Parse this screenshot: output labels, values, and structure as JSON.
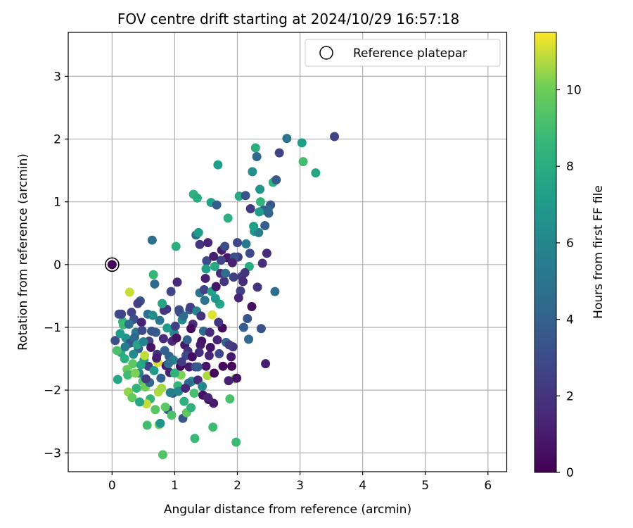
{
  "chart_data": {
    "type": "scatter",
    "title": "FOV centre drift starting at 2024/10/29 16:57:18",
    "xlabel": "Angular distance from reference (arcmin)",
    "ylabel": "Rotation from reference (arcmin)",
    "xlim": [
      -0.7,
      6.3
    ],
    "ylim": [
      -3.3,
      3.7
    ],
    "xticks": [
      0,
      1,
      2,
      3,
      4,
      5,
      6
    ],
    "yticks": [
      -3,
      -2,
      -1,
      0,
      1,
      2,
      3
    ],
    "grid": true,
    "colormap": "viridis",
    "colorbar": {
      "label": "Hours from first FF file",
      "min": 0,
      "max": 11.5,
      "ticks": [
        0,
        2,
        4,
        6,
        8,
        10
      ]
    },
    "legend": {
      "position": "top-right",
      "entries": [
        {
          "label": "Reference platepar",
          "marker": "open-circle"
        }
      ]
    },
    "reference_point": {
      "x": 0,
      "y": 0
    },
    "points": [
      [
        0.0,
        0.0,
        0.1
      ],
      [
        0.05,
        -1.21,
        3.2
      ],
      [
        0.11,
        -0.79,
        3.0
      ],
      [
        0.09,
        -1.83,
        7.6
      ],
      [
        0.17,
        -0.91,
        8.4
      ],
      [
        0.22,
        -1.17,
        6.6
      ],
      [
        0.28,
        -0.44,
        11.0
      ],
      [
        0.31,
        -0.76,
        2.6
      ],
      [
        0.33,
        -1.58,
        9.6
      ],
      [
        0.26,
        -2.03,
        10.4
      ],
      [
        0.38,
        -1.08,
        5.2
      ],
      [
        0.42,
        -1.34,
        3.9
      ],
      [
        0.45,
        -0.58,
        3.3
      ],
      [
        0.49,
        -1.86,
        9.3
      ],
      [
        0.53,
        -1.95,
        10.0
      ],
      [
        0.56,
        -2.56,
        9.0
      ],
      [
        0.59,
        -1.22,
        2.4
      ],
      [
        0.61,
        -2.14,
        8.5
      ],
      [
        0.64,
        0.39,
        4.8
      ],
      [
        0.66,
        -0.16,
        8.6
      ],
      [
        0.68,
        -0.31,
        4.4
      ],
      [
        0.72,
        -1.43,
        1.9
      ],
      [
        0.75,
        -2.55,
        10.1
      ],
      [
        0.77,
        -2.53,
        6.7
      ],
      [
        0.81,
        -3.03,
        9.4
      ],
      [
        0.83,
        -0.73,
        2.2
      ],
      [
        0.86,
        -1.61,
        1.0
      ],
      [
        0.89,
        -2.31,
        3.1
      ],
      [
        0.91,
        -1.46,
        4.1
      ],
      [
        0.94,
        -0.43,
        2.8
      ],
      [
        0.97,
        -2.05,
        3.6
      ],
      [
        0.99,
        -1.09,
        6.1
      ],
      [
        1.02,
        0.29,
        8.1
      ],
      [
        1.04,
        -0.28,
        1.5
      ],
      [
        1.08,
        -0.76,
        2.7
      ],
      [
        1.1,
        -1.76,
        10.2
      ],
      [
        1.13,
        -2.45,
        3.5
      ],
      [
        1.16,
        -1.28,
        0.8
      ],
      [
        1.19,
        -2.36,
        9.7
      ],
      [
        1.21,
        -1.38,
        1.8
      ],
      [
        1.24,
        -0.72,
        3.7
      ],
      [
        1.27,
        -1.86,
        6.3
      ],
      [
        1.3,
        1.12,
        8.3
      ],
      [
        1.32,
        -2.77,
        8.7
      ],
      [
        1.34,
        0.47,
        4.6
      ],
      [
        1.36,
        1.06,
        7.9
      ],
      [
        1.38,
        0.51,
        7.1
      ],
      [
        1.4,
        -0.45,
        5.1
      ],
      [
        1.43,
        -1.22,
        0.6
      ],
      [
        1.46,
        -1.06,
        4.5
      ],
      [
        1.49,
        -0.22,
        1.2
      ],
      [
        1.51,
        0.06,
        2.9
      ],
      [
        1.55,
        -1.45,
        1.4
      ],
      [
        1.58,
        0.99,
        7.4
      ],
      [
        1.6,
        -0.8,
        11.2
      ],
      [
        1.61,
        -2.59,
        8.9
      ],
      [
        1.64,
        -0.03,
        7.8
      ],
      [
        1.67,
        0.95,
        3.9
      ],
      [
        1.69,
        1.59,
        7.2
      ],
      [
        1.72,
        -0.63,
        7.5
      ],
      [
        1.76,
        -1.01,
        0.4
      ],
      [
        1.79,
        -0.27,
        1.9
      ],
      [
        1.82,
        -1.24,
        4.2
      ],
      [
        1.85,
        0.74,
        8.2
      ],
      [
        1.88,
        -2.14,
        9.2
      ],
      [
        1.9,
        -1.47,
        0.9
      ],
      [
        1.93,
        -1.31,
        2.0
      ],
      [
        1.96,
        -1.82,
        10.3
      ],
      [
        1.98,
        -2.83,
        8.8
      ],
      [
        2.01,
        0.12,
        2.3
      ],
      [
        2.03,
        1.09,
        7.7
      ],
      [
        2.07,
        -0.19,
        2.2
      ],
      [
        2.1,
        -1.0,
        3.8
      ],
      [
        2.13,
        1.1,
        3.3
      ],
      [
        2.16,
        -0.86,
        3.4
      ],
      [
        2.19,
        -0.03,
        8.0
      ],
      [
        2.21,
        0.89,
        2.1
      ],
      [
        2.24,
        1.48,
        6.4
      ],
      [
        2.27,
        0.53,
        6.8
      ],
      [
        2.29,
        1.86,
        8.1
      ],
      [
        2.31,
        1.72,
        4.3
      ],
      [
        2.34,
        0.51,
        5.4
      ],
      [
        2.36,
        1.2,
        6.7
      ],
      [
        2.38,
        -1.02,
        3.3
      ],
      [
        2.4,
        0.02,
        1.7
      ],
      [
        2.42,
        0.87,
        3.7
      ],
      [
        2.45,
        -1.58,
        1.1
      ],
      [
        2.47,
        0.18,
        1.6
      ],
      [
        2.5,
        0.82,
        4.1
      ],
      [
        2.53,
        0.95,
        3.4
      ],
      [
        2.57,
        1.31,
        8.3
      ],
      [
        2.6,
        -0.43,
        4.7
      ],
      [
        2.62,
        1.35,
        3.6
      ],
      [
        2.67,
        1.78,
        2.6
      ],
      [
        2.79,
        2.01,
        4.9
      ],
      [
        3.03,
        1.94,
        7.3
      ],
      [
        3.05,
        1.64,
        9.0
      ],
      [
        3.25,
        1.46,
        7.6
      ],
      [
        3.55,
        2.04,
        2.6
      ],
      [
        0.14,
        -1.4,
        7.9
      ],
      [
        0.18,
        -0.96,
        8.8
      ],
      [
        0.24,
        -1.67,
        9.9
      ],
      [
        0.29,
        -1.25,
        3.5
      ],
      [
        0.35,
        -0.87,
        3.1
      ],
      [
        0.39,
        -1.97,
        8.4
      ],
      [
        0.43,
        -1.73,
        5.8
      ],
      [
        0.47,
        -0.92,
        1.3
      ],
      [
        0.51,
        -1.52,
        6.9
      ],
      [
        0.55,
        -2.22,
        10.9
      ],
      [
        0.58,
        -1.62,
        2.5
      ],
      [
        0.62,
        -1.32,
        0.7
      ],
      [
        0.67,
        -1.69,
        7.0
      ],
      [
        0.7,
        -1.08,
        3.8
      ],
      [
        0.74,
        -2.03,
        10.7
      ],
      [
        0.78,
        -1.81,
        4.0
      ],
      [
        0.82,
        -1.18,
        1.6
      ],
      [
        0.85,
        -2.27,
        9.6
      ],
      [
        0.88,
        -1.01,
        7.1
      ],
      [
        0.92,
        -1.72,
        1.2
      ],
      [
        0.95,
        -2.4,
        9.2
      ],
      [
        0.98,
        -1.52,
        5.5
      ],
      [
        1.01,
        -0.98,
        2.5
      ],
      [
        1.05,
        -1.93,
        8.6
      ],
      [
        1.09,
        -1.62,
        0.3
      ],
      [
        1.12,
        -0.88,
        6.2
      ],
      [
        1.15,
        -2.18,
        8.2
      ],
      [
        1.18,
        -1.45,
        2.8
      ],
      [
        1.22,
        -1.89,
        4.4
      ],
      [
        1.25,
        -0.68,
        2.4
      ],
      [
        1.28,
        -1.47,
        0.5
      ],
      [
        1.31,
        -2.05,
        9.1
      ],
      [
        1.35,
        -0.74,
        5.8
      ],
      [
        1.37,
        -1.84,
        1.5
      ],
      [
        1.41,
        -1.28,
        1.0
      ],
      [
        1.44,
        -1.94,
        6.0
      ],
      [
        1.47,
        -0.4,
        2.6
      ],
      [
        1.5,
        -1.62,
        0.8
      ],
      [
        1.54,
        -2.15,
        0.4
      ],
      [
        1.57,
        -1.32,
        0.7
      ],
      [
        1.62,
        -2.21,
        1.0
      ],
      [
        1.65,
        -0.54,
        6.8
      ],
      [
        1.68,
        -1.2,
        1.3
      ],
      [
        1.73,
        -0.14,
        1.6
      ],
      [
        1.77,
        -1.62,
        0.4
      ],
      [
        1.81,
        -0.14,
        4.5
      ],
      [
        1.84,
        0.11,
        0.9
      ],
      [
        1.87,
        -1.28,
        2.3
      ],
      [
        1.91,
        -1.62,
        0.3
      ],
      [
        1.95,
        0.12,
        3.3
      ],
      [
        1.99,
        -1.81,
        0.6
      ],
      [
        2.05,
        -0.42,
        2.4
      ],
      [
        2.09,
        -0.27,
        1.6
      ],
      [
        2.12,
        -0.13,
        1.9
      ],
      [
        2.18,
        -1.19,
        4.4
      ],
      [
        2.23,
        -0.67,
        0.6
      ],
      [
        2.26,
        0.61,
        7.3
      ],
      [
        2.32,
        -0.36,
        1.9
      ],
      [
        2.37,
        1.0,
        8.4
      ],
      [
        2.44,
        0.62,
        3.8
      ],
      [
        0.08,
        -1.37,
        9.2
      ],
      [
        0.13,
        -1.1,
        7.1
      ],
      [
        0.2,
        -1.5,
        8.1
      ],
      [
        0.27,
        -0.95,
        4.7
      ],
      [
        0.32,
        -2.12,
        9.8
      ],
      [
        0.36,
        -1.16,
        4.3
      ],
      [
        0.4,
        -1.28,
        7.5
      ],
      [
        0.44,
        -2.19,
        7.6
      ],
      [
        0.48,
        -1.05,
        3.0
      ],
      [
        0.52,
        -1.45,
        10.9
      ],
      [
        0.57,
        -0.79,
        4.8
      ],
      [
        0.6,
        -1.88,
        4.3
      ],
      [
        0.63,
        -1.06,
        3.5
      ],
      [
        0.69,
        -2.31,
        9.5
      ],
      [
        0.73,
        -1.56,
        11.1
      ],
      [
        0.76,
        -0.89,
        5.1
      ],
      [
        0.79,
        -1.97,
        10.6
      ],
      [
        0.84,
        -1.37,
        3.9
      ],
      [
        0.87,
        -0.71,
        2.1
      ],
      [
        0.9,
        -1.58,
        4.9
      ],
      [
        0.93,
        -2.04,
        5.6
      ],
      [
        0.96,
        -1.22,
        1.4
      ],
      [
        1.0,
        -1.73,
        8.4
      ],
      [
        1.03,
        -1.17,
        0.6
      ],
      [
        1.06,
        -2.02,
        6.0
      ],
      [
        1.11,
        -1.55,
        2.2
      ],
      [
        1.14,
        -0.82,
        4.6
      ],
      [
        1.17,
        -1.97,
        1.5
      ],
      [
        1.2,
        -1.2,
        4.0
      ],
      [
        1.23,
        -1.63,
        0.9
      ],
      [
        1.26,
        -2.28,
        8.3
      ],
      [
        1.29,
        -0.95,
        1.6
      ],
      [
        1.33,
        -1.63,
        3.2
      ],
      [
        1.39,
        -1.4,
        1.8
      ],
      [
        1.42,
        -0.82,
        1.9
      ],
      [
        1.45,
        -2.08,
        0.5
      ],
      [
        1.48,
        -0.57,
        5.0
      ],
      [
        1.52,
        -1.77,
        10.7
      ],
      [
        1.56,
        -1.08,
        1.7
      ],
      [
        1.59,
        -0.43,
        7.3
      ],
      [
        1.63,
        -1.73,
        0.2
      ],
      [
        1.66,
        -0.35,
        0.8
      ],
      [
        1.7,
        -0.92,
        2.0
      ],
      [
        1.74,
        0.07,
        2.7
      ],
      [
        0.15,
        -0.79,
        2.7
      ],
      [
        0.21,
        -1.31,
        5.4
      ],
      [
        0.25,
        -1.76,
        8.9
      ],
      [
        0.34,
        -1.43,
        6.2
      ],
      [
        0.37,
        -1.73,
        10.2
      ],
      [
        0.41,
        -0.62,
        2.5
      ],
      [
        0.46,
        -1.6,
        7.7
      ],
      [
        0.5,
        -1.23,
        5.8
      ],
      [
        0.54,
        -1.82,
        2.2
      ],
      [
        0.65,
        -0.81,
        6.3
      ],
      [
        0.71,
        -1.49,
        1.1
      ],
      [
        0.8,
        -0.62,
        7.6
      ],
      [
        1.07,
        -0.72,
        3.1
      ],
      [
        1.26,
        -1.02,
        0.3
      ],
      [
        1.37,
        -1.63,
        3.6
      ],
      [
        1.53,
        -2.12,
        1.3
      ],
      [
        1.71,
        -1.42,
        2.8
      ],
      [
        1.86,
        -1.85,
        1.2
      ],
      [
        2.02,
        -0.53,
        1.4
      ],
      [
        2.14,
        0.33,
        5.2
      ],
      [
        2.35,
        0.84,
        7.0
      ],
      [
        2.49,
        0.88,
        4.2
      ],
      [
        1.4,
        0.32,
        2.1
      ],
      [
        1.53,
        0.35,
        1.3
      ],
      [
        1.75,
        0.23,
        1.0
      ],
      [
        1.92,
        0.03,
        1.2
      ],
      [
        2.0,
        0.35,
        2.8
      ],
      [
        2.2,
        0.18,
        2.9
      ],
      [
        1.5,
        -0.07,
        7.2
      ],
      [
        1.62,
        0.13,
        1.1
      ],
      [
        1.8,
        0.29,
        3.0
      ],
      [
        1.94,
        -0.2,
        2.5
      ]
    ]
  }
}
